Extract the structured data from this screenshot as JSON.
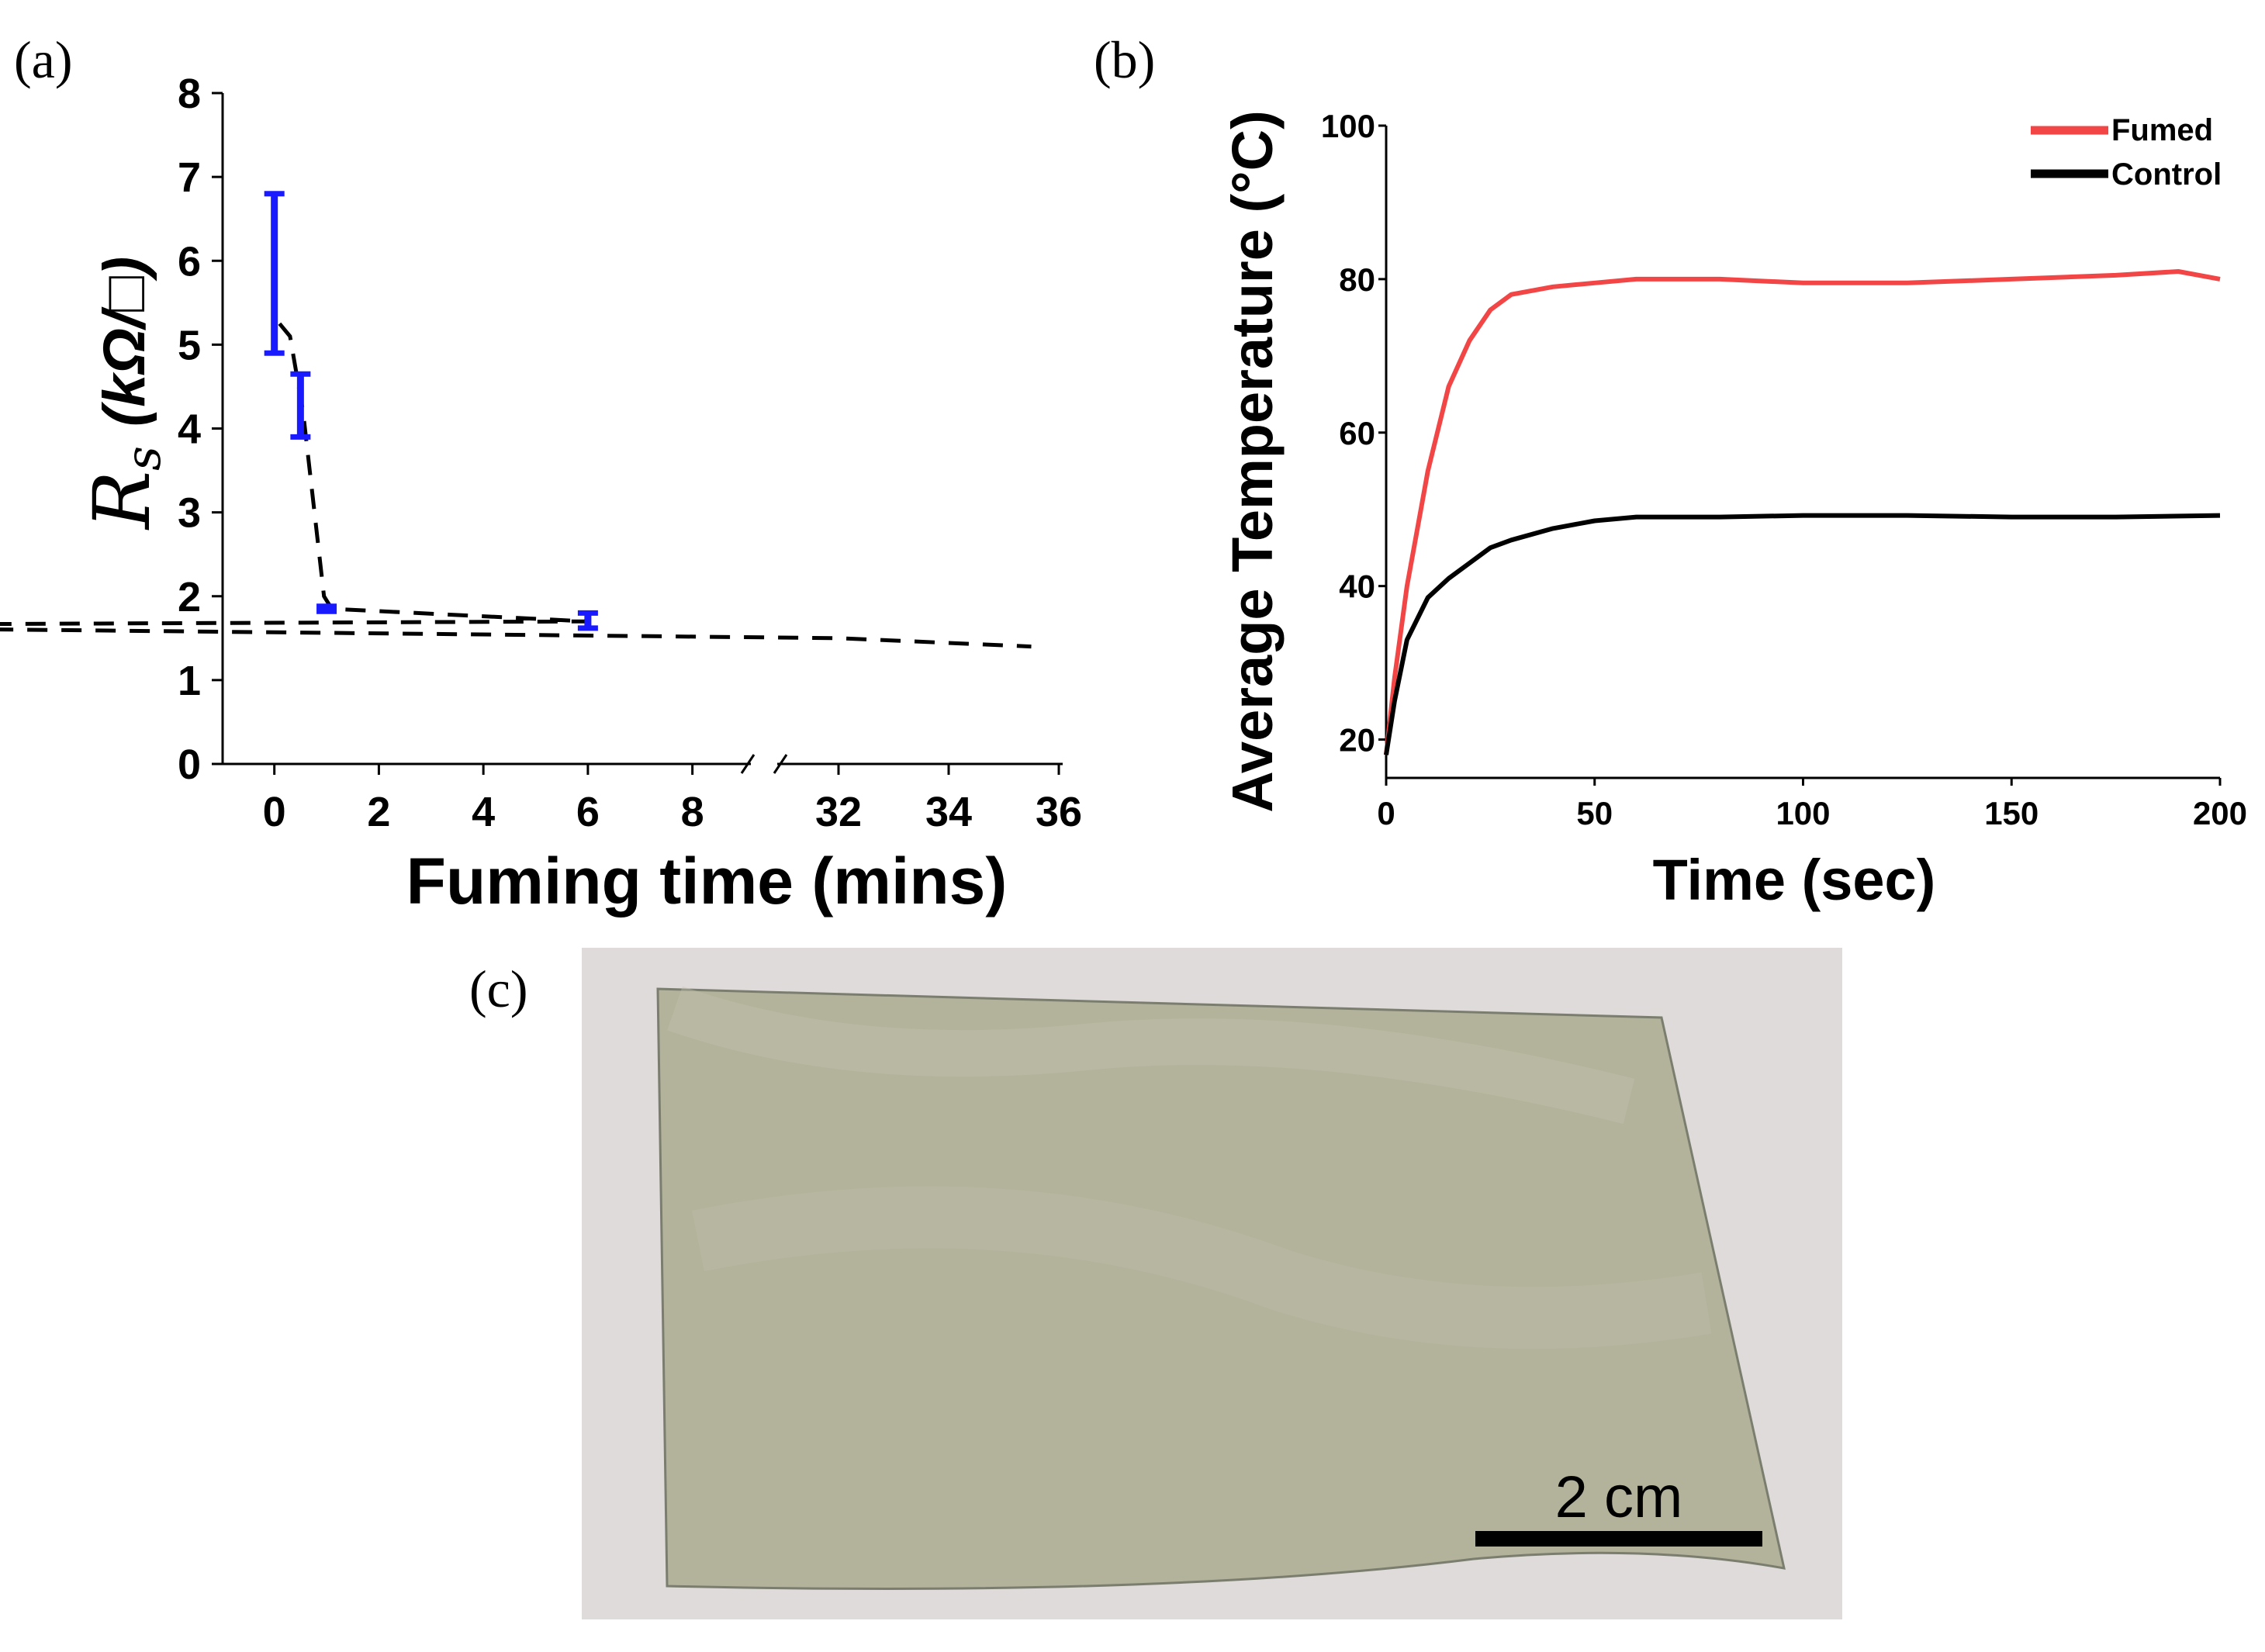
{
  "panels": {
    "a": "(a)",
    "b": "(b)",
    "c": "(c)"
  },
  "chart_data": [
    {
      "type": "line",
      "panel": "(a)",
      "xlabel": "Fuming time (mins)",
      "ylabel_symbol": "R",
      "ylabel_subscript": "s",
      "ylabel_units": "(kΩ/□)",
      "xlim": [
        -0.5,
        36
      ],
      "ylim": [
        0,
        8
      ],
      "x_break": {
        "from": 9,
        "to": 31
      },
      "x_ticks": [
        {
          "value": 0,
          "label": "0"
        },
        {
          "value": 2,
          "label": "2"
        },
        {
          "value": 4,
          "label": "4"
        },
        {
          "value": 6,
          "label": "6"
        },
        {
          "value": 8,
          "label": "8"
        },
        {
          "value": 32,
          "label": "32"
        },
        {
          "value": 34,
          "label": "34"
        },
        {
          "value": 36,
          "label": "36"
        }
      ],
      "y_ticks": [
        0,
        1,
        2,
        3,
        4,
        5,
        6,
        7,
        8
      ],
      "series": [
        {
          "style": "errorbar",
          "color": "#1a1aff",
          "points": [
            {
              "x": 0,
              "y_low": 4.9,
              "y_high": 6.8
            },
            {
              "x": 0.5,
              "y_low": 3.9,
              "y_high": 4.65
            },
            {
              "x": 1,
              "y_low": 1.82,
              "y_high": 1.88
            },
            {
              "x": 6,
              "y_low": 1.62,
              "y_high": 1.8
            }
          ]
        },
        {
          "style": "dashed-fit",
          "color": "#000000",
          "x": [
            0.1,
            0.3,
            0.55,
            0.75,
            0.95,
            1.1,
            6,
            10,
            32,
            35.5
          ],
          "y": [
            5.25,
            5.1,
            4.2,
            3.1,
            2.0,
            1.85,
            1.7,
            1.65,
            1.5,
            1.4
          ]
        }
      ]
    },
    {
      "type": "line",
      "panel": "(b)",
      "xlabel": "Time (sec)",
      "ylabel": "Average Temperature (°C)",
      "xlim": [
        0,
        200
      ],
      "ylim": [
        15,
        100
      ],
      "x_ticks": [
        0,
        50,
        100,
        150,
        200
      ],
      "y_ticks": [
        20,
        40,
        60,
        80,
        100
      ],
      "series": [
        {
          "name": "Fumed",
          "color": "#f24646",
          "x": [
            0,
            2,
            5,
            10,
            15,
            20,
            25,
            30,
            40,
            50,
            60,
            80,
            100,
            125,
            150,
            175,
            190,
            200
          ],
          "y": [
            18,
            28,
            40,
            55,
            66,
            72,
            76,
            78,
            79,
            79.5,
            80,
            80,
            79.5,
            79.5,
            80,
            80.5,
            81,
            80
          ]
        },
        {
          "name": "Control",
          "color": "#000000",
          "x": [
            0,
            2,
            5,
            10,
            15,
            20,
            25,
            30,
            40,
            50,
            60,
            80,
            100,
            125,
            150,
            175,
            200
          ],
          "y": [
            18,
            25,
            33,
            38.5,
            41,
            43,
            45,
            46,
            47.5,
            48.5,
            49,
            49,
            49.2,
            49.2,
            49,
            49,
            49.2
          ]
        }
      ]
    }
  ],
  "photo": {
    "scale_bar_label": "2 cm",
    "background_color": "#dedbda",
    "film_color": "#b3b39c"
  }
}
